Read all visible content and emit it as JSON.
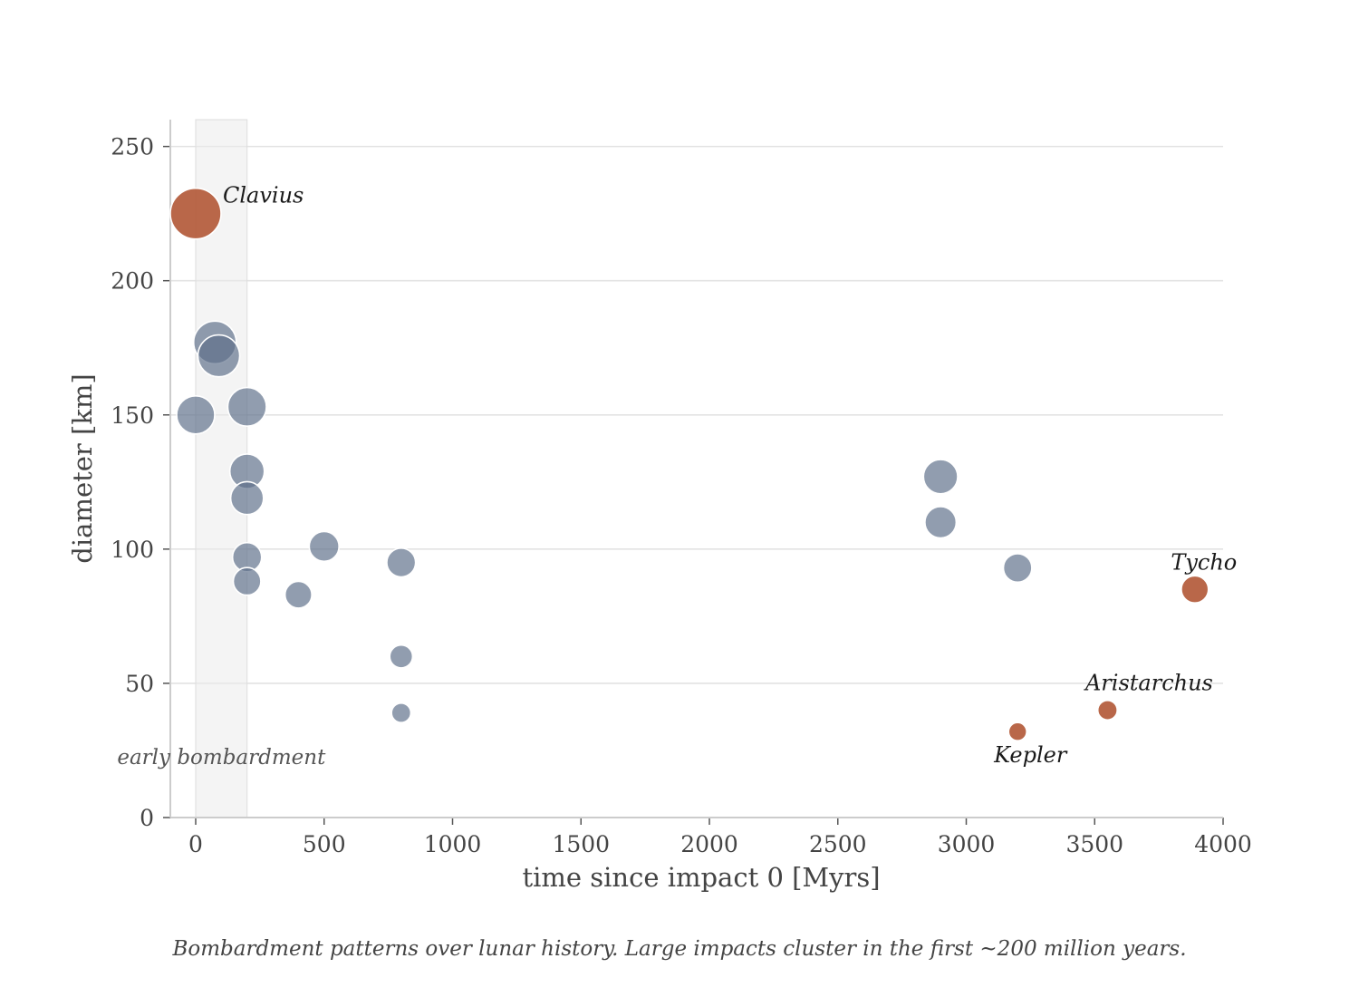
{
  "chart_data": {
    "type": "scatter",
    "xlabel": "time since impact 0  [Myrs]",
    "ylabel": "diameter  [km]",
    "xlim": [
      -100,
      4000
    ],
    "ylim": [
      0,
      260
    ],
    "xticks": [
      0,
      500,
      1000,
      1500,
      2000,
      2500,
      3000,
      3500,
      4000
    ],
    "yticks": [
      0,
      50,
      100,
      150,
      200,
      250
    ],
    "grid": "horizontal",
    "shaded_region": {
      "x": [
        0,
        200
      ],
      "label": "early bombardment"
    },
    "colors": {
      "default": "#5d6f89",
      "highlight": "#b35a3a"
    },
    "points": [
      {
        "x": 0,
        "y": 225,
        "highlight": true,
        "label": "Clavius"
      },
      {
        "x": 75,
        "y": 177
      },
      {
        "x": 90,
        "y": 172
      },
      {
        "x": 0,
        "y": 150
      },
      {
        "x": 200,
        "y": 153
      },
      {
        "x": 200,
        "y": 129
      },
      {
        "x": 200,
        "y": 119
      },
      {
        "x": 200,
        "y": 97
      },
      {
        "x": 200,
        "y": 88
      },
      {
        "x": 400,
        "y": 83
      },
      {
        "x": 500,
        "y": 101
      },
      {
        "x": 800,
        "y": 95
      },
      {
        "x": 800,
        "y": 60
      },
      {
        "x": 800,
        "y": 39
      },
      {
        "x": 2900,
        "y": 127
      },
      {
        "x": 2900,
        "y": 110
      },
      {
        "x": 3200,
        "y": 93
      },
      {
        "x": 3890,
        "y": 85,
        "highlight": true,
        "label": "Tycho"
      },
      {
        "x": 3550,
        "y": 40,
        "highlight": true,
        "label": "Aristarchus"
      },
      {
        "x": 3200,
        "y": 32,
        "highlight": true,
        "label": "Kepler"
      }
    ]
  },
  "caption": "Bombardment patterns over lunar history. Large impacts cluster in the first ~200 million years."
}
